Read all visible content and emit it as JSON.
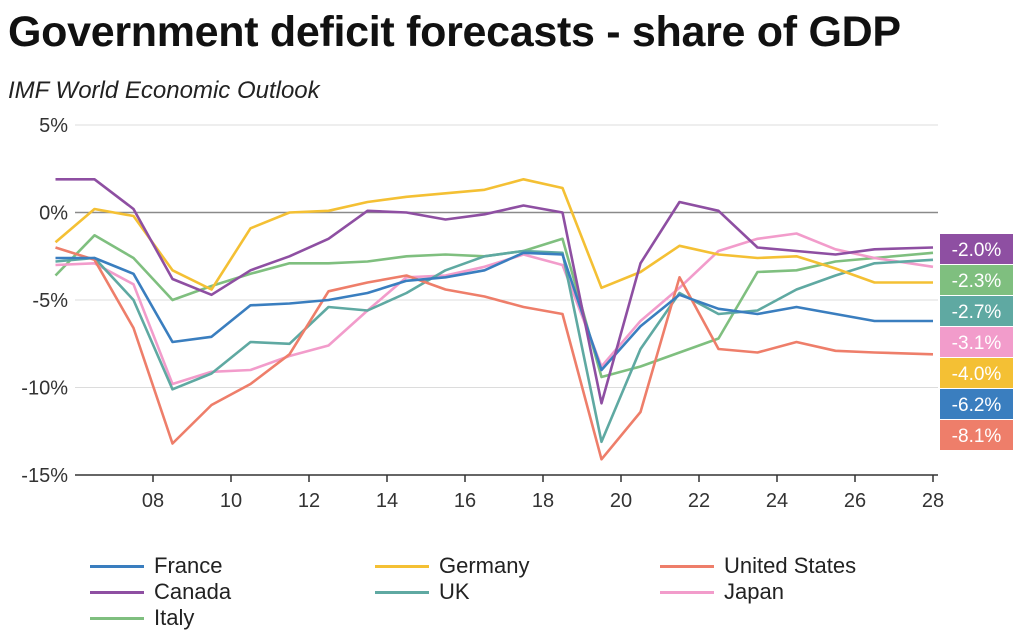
{
  "header": {
    "title": "Government deficit forecasts - share of GDP",
    "subtitle": "IMF World Economic Outlook"
  },
  "chart_data": {
    "type": "line",
    "title": "Government deficit forecasts - share of GDP",
    "subtitle": "IMF World Economic Outlook",
    "xlabel": "",
    "ylabel": "",
    "unit": "% of GDP",
    "x": [
      2006,
      2007,
      2008,
      2009,
      2010,
      2011,
      2012,
      2013,
      2014,
      2015,
      2016,
      2017,
      2018,
      2019,
      2020,
      2021,
      2022,
      2023,
      2024,
      2025,
      2026,
      2027,
      2028
    ],
    "xlim": [
      2006,
      2028
    ],
    "ylim": [
      -15,
      5
    ],
    "yticks": [
      5,
      0,
      -5,
      -10,
      -15
    ],
    "ytick_labels": [
      "5%",
      "0%",
      "-5%",
      "-10%",
      "-15%"
    ],
    "xticks": [
      2008,
      2010,
      2012,
      2014,
      2016,
      2018,
      2020,
      2022,
      2024,
      2026,
      2028
    ],
    "xtick_labels": [
      "08",
      "10",
      "12",
      "14",
      "16",
      "18",
      "20",
      "22",
      "24",
      "26",
      "28"
    ],
    "grid": true,
    "legend_position": "bottom",
    "series": [
      {
        "name": "France",
        "color": "#3a7ebf",
        "end_label": "-6.2%",
        "values": [
          -2.6,
          -2.6,
          -3.5,
          -7.4,
          -7.1,
          -5.3,
          -5.2,
          -5.0,
          -4.6,
          -3.9,
          -3.7,
          -3.3,
          -2.3,
          -2.4,
          -9.0,
          -6.5,
          -4.7,
          -5.5,
          -5.8,
          -5.4,
          -5.8,
          -6.2,
          -6.2
        ]
      },
      {
        "name": "Germany",
        "color": "#f4c034",
        "end_label": "-4.0%",
        "values": [
          -1.7,
          0.2,
          -0.2,
          -3.3,
          -4.4,
          -0.9,
          0.0,
          0.1,
          0.6,
          0.9,
          1.1,
          1.3,
          1.9,
          1.4,
          -4.3,
          -3.4,
          -1.9,
          -2.4,
          -2.6,
          -2.5,
          -3.2,
          -4.0,
          -4.0
        ]
      },
      {
        "name": "United States",
        "color": "#ee7e6a",
        "end_label": "-8.1%",
        "values": [
          -2.0,
          -2.7,
          -6.6,
          -13.2,
          -11.0,
          -9.8,
          -8.1,
          -4.5,
          -4.0,
          -3.6,
          -4.4,
          -4.8,
          -5.4,
          -5.8,
          -14.1,
          -11.4,
          -3.7,
          -7.8,
          -8.0,
          -7.4,
          -7.9,
          -8.0,
          -8.1
        ]
      },
      {
        "name": "Canada",
        "color": "#8e4fa2",
        "end_label": "-2.0%",
        "values": [
          1.9,
          1.9,
          0.2,
          -3.8,
          -4.7,
          -3.3,
          -2.5,
          -1.5,
          0.1,
          0.0,
          -0.4,
          -0.1,
          0.4,
          0.0,
          -10.9,
          -2.9,
          0.6,
          0.1,
          -2.0,
          -2.2,
          -2.4,
          -2.1,
          -2.0
        ]
      },
      {
        "name": "UK",
        "color": "#5fa9a2",
        "end_label": "-2.7%",
        "values": [
          -2.8,
          -2.6,
          -5.0,
          -10.1,
          -9.2,
          -7.4,
          -7.5,
          -5.4,
          -5.6,
          -4.6,
          -3.3,
          -2.5,
          -2.2,
          -2.3,
          -13.1,
          -7.8,
          -4.6,
          -5.8,
          -5.6,
          -4.4,
          -3.6,
          -2.9,
          -2.7
        ]
      },
      {
        "name": "Japan",
        "color": "#f29ccb",
        "end_label": "-3.1%",
        "values": [
          -3.0,
          -2.9,
          -4.1,
          -9.8,
          -9.1,
          -9.0,
          -8.2,
          -7.6,
          -5.6,
          -3.7,
          -3.6,
          -3.1,
          -2.4,
          -3.0,
          -8.8,
          -6.2,
          -4.3,
          -2.2,
          -1.5,
          -1.2,
          -2.1,
          -2.6,
          -3.1
        ]
      },
      {
        "name": "Italy",
        "color": "#7fbf7f",
        "end_label": "-2.3%",
        "values": [
          -3.6,
          -1.3,
          -2.6,
          -5.0,
          -4.2,
          -3.5,
          -2.9,
          -2.9,
          -2.8,
          -2.5,
          -2.4,
          -2.5,
          -2.2,
          -1.5,
          -9.4,
          -8.8,
          -8.0,
          -7.2,
          -3.4,
          -3.3,
          -2.8,
          -2.6,
          -2.3
        ]
      }
    ],
    "end_label_order": [
      "Canada",
      "Italy",
      "UK",
      "Japan",
      "Germany",
      "France",
      "United States"
    ]
  },
  "legend": {
    "items": [
      {
        "name": "France",
        "color": "#3a7ebf"
      },
      {
        "name": "Germany",
        "color": "#f4c034"
      },
      {
        "name": "United States",
        "color": "#ee7e6a"
      },
      {
        "name": "Canada",
        "color": "#8e4fa2"
      },
      {
        "name": "UK",
        "color": "#5fa9a2"
      },
      {
        "name": "Japan",
        "color": "#f29ccb"
      },
      {
        "name": "Italy",
        "color": "#7fbf7f"
      }
    ]
  }
}
